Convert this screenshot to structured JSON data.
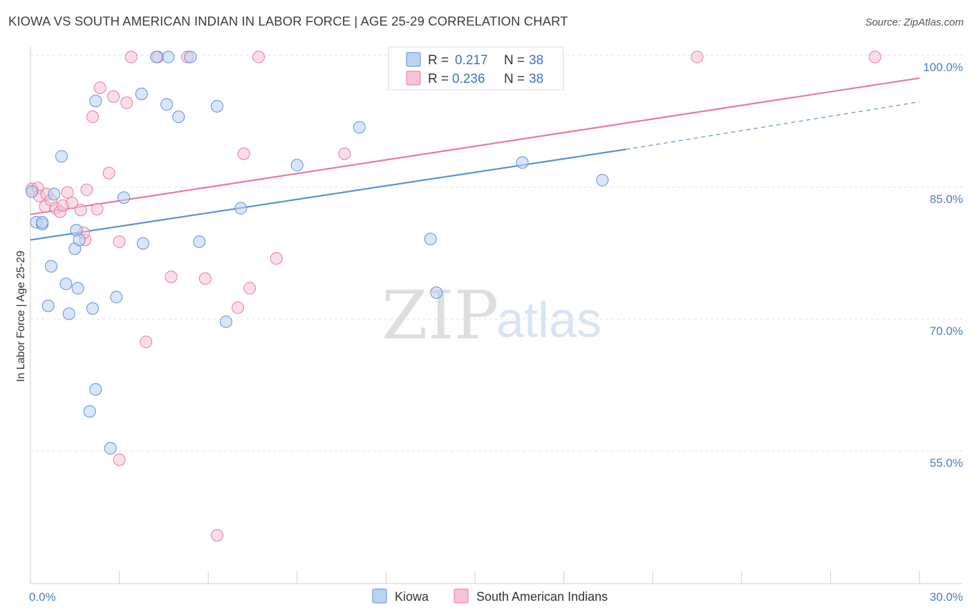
{
  "title": "KIOWA VS SOUTH AMERICAN INDIAN IN LABOR FORCE | AGE 25-29 CORRELATION CHART",
  "source": "Source: ZipAtlas.com",
  "watermark": {
    "zip": "ZIP",
    "atlas": "atlas"
  },
  "chart_data": {
    "type": "scatter",
    "xlabel": "",
    "ylabel": "In Labor Force | Age 25-29",
    "xlim": [
      0,
      30
    ],
    "ylim": [
      40,
      101
    ],
    "x_tick_labels": [
      {
        "value": 0,
        "label": "0.0%"
      },
      {
        "value": 30,
        "label": "30.0%"
      }
    ],
    "y_ticks": [
      {
        "value": 100,
        "label": "100.0%"
      },
      {
        "value": 85,
        "label": "85.0%"
      },
      {
        "value": 70,
        "label": "70.0%"
      },
      {
        "value": 55,
        "label": "55.0%"
      }
    ],
    "legend": {
      "r_label": "R =",
      "n_label": "N =",
      "entries": [
        {
          "name": "Kiowa",
          "r": "0.217",
          "n": "38"
        },
        {
          "name": "South American Indians",
          "r": "0.236",
          "n": "38"
        }
      ]
    },
    "series": [
      {
        "name": "Kiowa",
        "color": "#5b8fd6",
        "fill": "#b9d2f3",
        "trend": {
          "x0": 0,
          "y0": 79.0,
          "x1": 20.1,
          "y1": 89.3,
          "dash_x1": 30,
          "dash_y1": 94.7
        },
        "points": [
          [
            0.05,
            84.5
          ],
          [
            0.2,
            81.0
          ],
          [
            0.4,
            80.8
          ],
          [
            0.8,
            84.2
          ],
          [
            1.05,
            88.5
          ],
          [
            0.7,
            76.0
          ],
          [
            1.2,
            74.0
          ],
          [
            0.6,
            71.5
          ],
          [
            1.3,
            70.6
          ],
          [
            1.6,
            73.5
          ],
          [
            1.5,
            78.0
          ],
          [
            1.55,
            80.1
          ],
          [
            1.65,
            79.0
          ],
          [
            2.1,
            71.2
          ],
          [
            2.2,
            94.8
          ],
          [
            2.2,
            62.0
          ],
          [
            2.0,
            59.5
          ],
          [
            2.7,
            55.3
          ],
          [
            2.9,
            72.5
          ],
          [
            3.15,
            83.8
          ],
          [
            3.8,
            78.6
          ],
          [
            3.75,
            95.6
          ],
          [
            4.25,
            99.8
          ],
          [
            4.65,
            99.8
          ],
          [
            4.6,
            94.4
          ],
          [
            5.0,
            93.0
          ],
          [
            5.4,
            99.8
          ],
          [
            5.7,
            78.8
          ],
          [
            6.3,
            94.2
          ],
          [
            6.6,
            69.7
          ],
          [
            7.1,
            82.6
          ],
          [
            9.0,
            87.5
          ],
          [
            11.1,
            91.8
          ],
          [
            13.5,
            79.1
          ],
          [
            13.7,
            73.0
          ],
          [
            16.6,
            87.8
          ],
          [
            19.3,
            85.8
          ],
          [
            0.4,
            81.0
          ]
        ]
      },
      {
        "name": "South American Indians",
        "color": "#e8799e",
        "fill": "#f6c3d3",
        "trend": {
          "x0": 0,
          "y0": 81.9,
          "x1": 30,
          "y1": 97.4
        },
        "points": [
          [
            0.05,
            84.8
          ],
          [
            0.25,
            84.9
          ],
          [
            0.3,
            84.0
          ],
          [
            0.5,
            82.8
          ],
          [
            0.55,
            84.2
          ],
          [
            0.7,
            83.5
          ],
          [
            0.85,
            82.6
          ],
          [
            1.0,
            82.2
          ],
          [
            1.1,
            82.9
          ],
          [
            1.25,
            84.4
          ],
          [
            1.4,
            83.2
          ],
          [
            1.7,
            82.4
          ],
          [
            1.9,
            84.7
          ],
          [
            1.85,
            79.0
          ],
          [
            1.8,
            79.8
          ],
          [
            2.25,
            82.5
          ],
          [
            2.1,
            93.0
          ],
          [
            2.35,
            96.3
          ],
          [
            2.65,
            86.6
          ],
          [
            2.8,
            95.3
          ],
          [
            3.0,
            78.8
          ],
          [
            3.25,
            94.6
          ],
          [
            3.4,
            99.8
          ],
          [
            3.9,
            67.4
          ],
          [
            4.3,
            99.8
          ],
          [
            4.75,
            74.8
          ],
          [
            5.3,
            99.8
          ],
          [
            5.9,
            74.6
          ],
          [
            7.0,
            71.3
          ],
          [
            7.2,
            88.8
          ],
          [
            7.4,
            73.5
          ],
          [
            7.7,
            99.8
          ],
          [
            8.3,
            76.9
          ],
          [
            10.6,
            88.8
          ],
          [
            22.5,
            99.8
          ],
          [
            28.5,
            99.8
          ],
          [
            6.3,
            45.4
          ],
          [
            3.0,
            54.0
          ]
        ]
      }
    ]
  }
}
